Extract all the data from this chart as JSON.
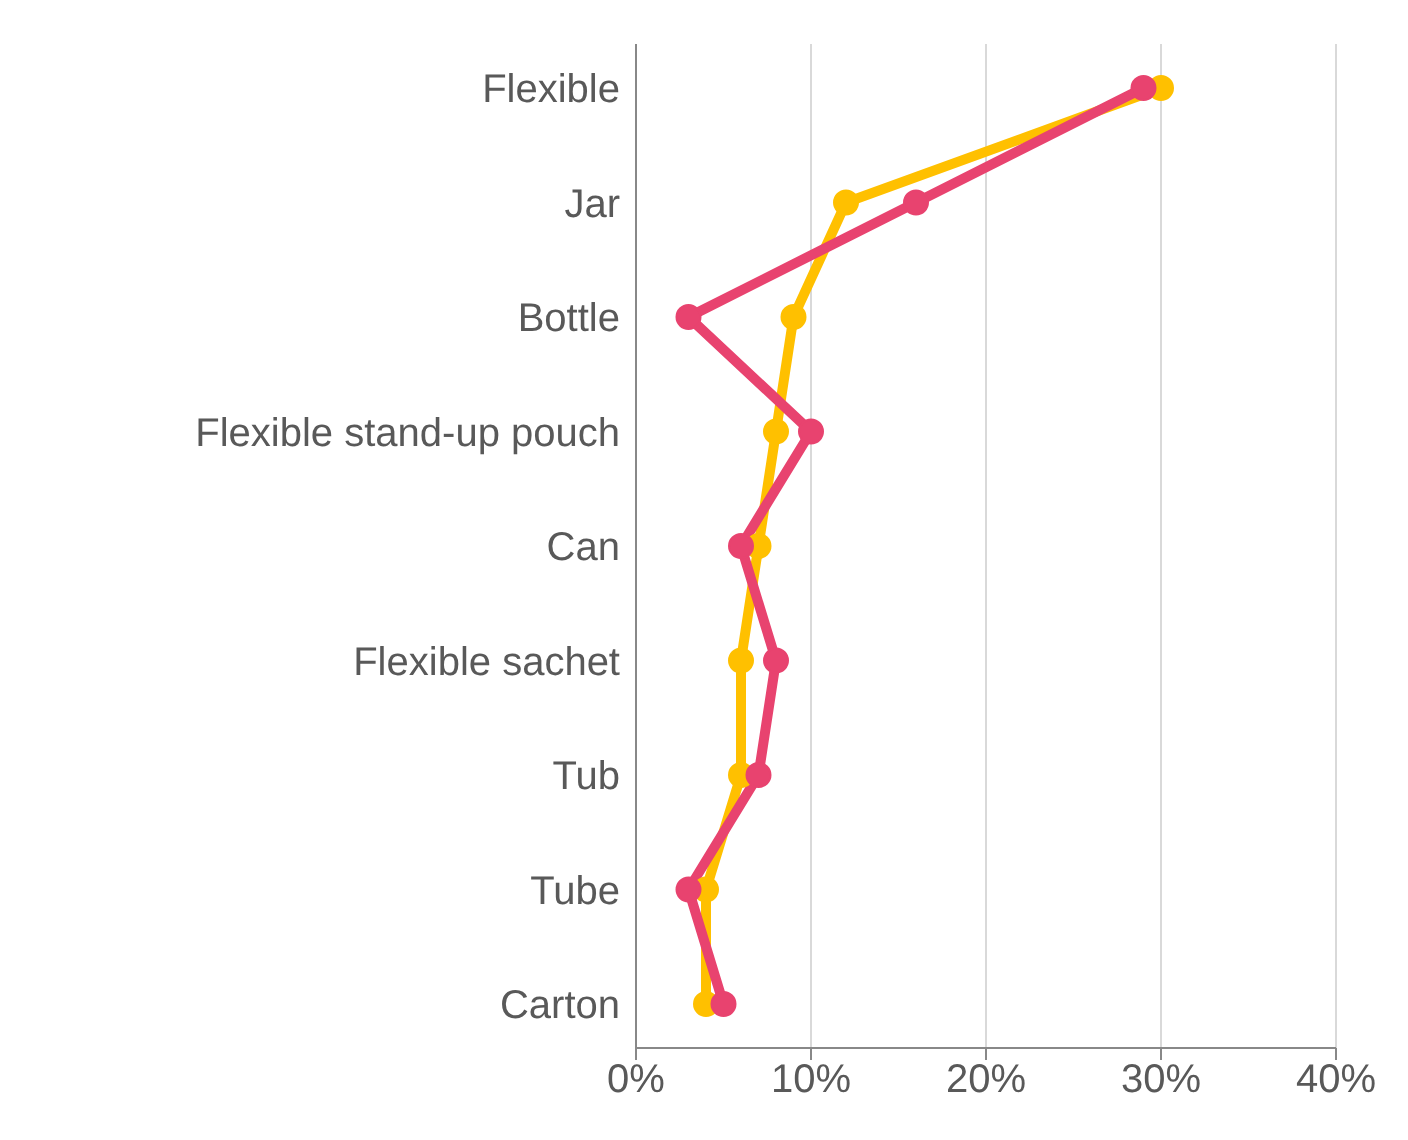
{
  "chart_data": {
    "type": "line",
    "categories": [
      "Flexible",
      "Jar",
      "Bottle",
      "Flexible stand-up pouch",
      "Can",
      "Flexible sachet",
      "Tub",
      "Tube",
      "Carton"
    ],
    "orientation": "horizontal",
    "series": [
      {
        "color": "#ffc000",
        "values": [
          30,
          12,
          9,
          8,
          7,
          6,
          6,
          4,
          4
        ]
      },
      {
        "color": "#e8436f",
        "values": [
          29,
          16,
          3,
          10,
          6,
          8,
          7,
          3,
          5
        ]
      }
    ],
    "xlim": [
      0,
      40
    ],
    "xticks": [
      {
        "value": 0,
        "label": "0%"
      },
      {
        "value": 10,
        "label": "10%"
      },
      {
        "value": 20,
        "label": "20%"
      },
      {
        "value": 30,
        "label": "30%"
      },
      {
        "value": 40,
        "label": "40%"
      }
    ],
    "grid": "x",
    "marker": "circle",
    "line_style": "solid",
    "legend": false
  }
}
